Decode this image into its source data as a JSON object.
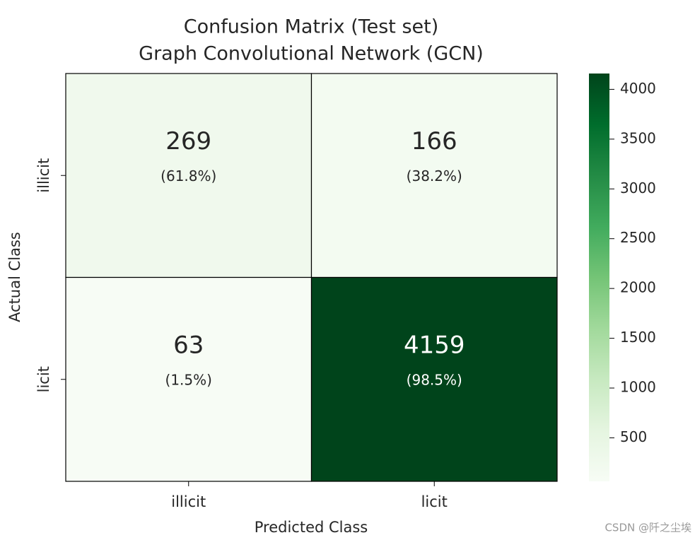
{
  "chart_data": {
    "type": "heatmap",
    "title": "Confusion Matrix (Test set)",
    "subtitle": "Graph Convolutional Network (GCN)",
    "x_label": "Predicted Class",
    "y_label": "Actual Class",
    "x_categories": [
      "illicit",
      "licit"
    ],
    "y_categories": [
      "illicit",
      "licit"
    ],
    "values": [
      [
        269,
        166
      ],
      [
        63,
        4159
      ]
    ],
    "percent_labels": [
      [
        "(61.8%)",
        "(38.2%)"
      ],
      [
        "(1.5%)",
        "(98.5%)"
      ]
    ],
    "colormap": [
      "#f7fcf5",
      "#e5f5e0",
      "#c7e9c0",
      "#a1d99b",
      "#74c476",
      "#41ab5d",
      "#238b45",
      "#006d2c",
      "#00441b"
    ],
    "clim": [
      63,
      4159
    ],
    "cticks": [
      500,
      1000,
      1500,
      2000,
      2500,
      3000,
      3500,
      4000
    ],
    "watermark": "CSDN @阡之尘埃"
  }
}
